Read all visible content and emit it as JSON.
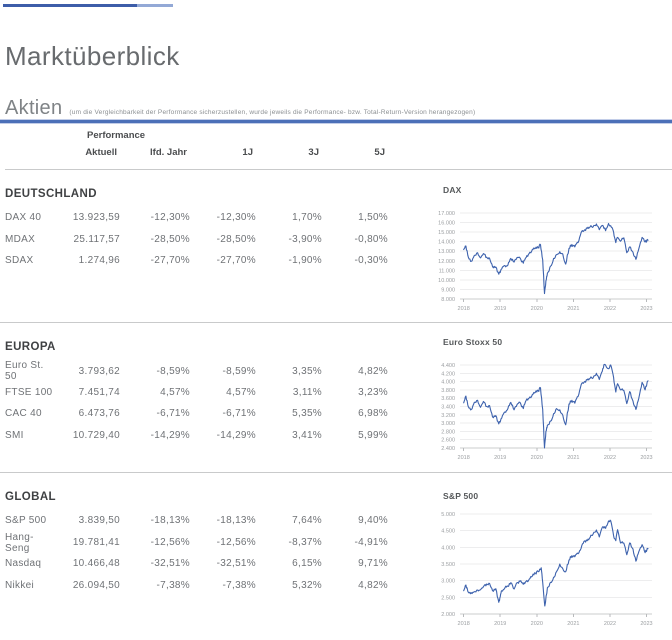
{
  "header": {
    "title": "Marktüberblick",
    "section": "Aktien",
    "section_note": "(um die Vergleichbarkeit der Performance sicherzustellen, wurde jeweils die Performance- bzw. Total-Return-Version herangezogen)"
  },
  "table": {
    "group_header": "Performance",
    "columns": [
      "Aktuell",
      "lfd. Jahr",
      "1J",
      "3J",
      "5J"
    ],
    "sections": [
      {
        "title": "DEUTSCHLAND",
        "rows": [
          {
            "label": "DAX 40",
            "values": [
              "13.923,59",
              "-12,30%",
              "-12,30%",
              "1,70%",
              "1,50%"
            ]
          },
          {
            "label": "MDAX",
            "values": [
              "25.117,57",
              "-28,50%",
              "-28,50%",
              "-3,90%",
              "-0,80%"
            ]
          },
          {
            "label": "SDAX",
            "values": [
              "1.274,96",
              "-27,70%",
              "-27,70%",
              "-1,90%",
              "-0,30%"
            ]
          }
        ]
      },
      {
        "title": "EUROPA",
        "rows": [
          {
            "label": "Euro St. 50",
            "values": [
              "3.793,62",
              "-8,59%",
              "-8,59%",
              "3,35%",
              "4,82%"
            ]
          },
          {
            "label": "FTSE 100",
            "values": [
              "7.451,74",
              "4,57%",
              "4,57%",
              "3,11%",
              "3,23%"
            ]
          },
          {
            "label": "CAC 40",
            "values": [
              "6.473,76",
              "-6,71%",
              "-6,71%",
              "5,35%",
              "6,98%"
            ]
          },
          {
            "label": "SMI",
            "values": [
              "10.729,40",
              "-14,29%",
              "-14,29%",
              "3,41%",
              "5,99%"
            ]
          }
        ]
      },
      {
        "title": "GLOBAL",
        "rows": [
          {
            "label": "S&P 500",
            "values": [
              "3.839,50",
              "-18,13%",
              "-18,13%",
              "7,64%",
              "9,40%"
            ]
          },
          {
            "label": "Hang-Seng",
            "values": [
              "19.781,41",
              "-12,56%",
              "-12,56%",
              "-8,37%",
              "-4,91%"
            ]
          },
          {
            "label": "Nasdaq",
            "values": [
              "10.466,48",
              "-32,51%",
              "-32,51%",
              "6,15%",
              "9,71%"
            ]
          },
          {
            "label": "Nikkei",
            "values": [
              "26.094,50",
              "-7,38%",
              "-7,38%",
              "5,32%",
              "4,82%"
            ]
          }
        ]
      }
    ]
  },
  "colors": {
    "accent_blue": "#4c70b8",
    "topline_dark": "#3d5da9",
    "topline_light": "#93a9d6",
    "chart_line": "#3d62ad",
    "divider_gray": "#c9cacb"
  },
  "chart_data": [
    {
      "type": "line",
      "title": "DAX",
      "ylim": [
        8000,
        17000
      ],
      "ytick_step": 1000,
      "ytick_labels": [
        "17.000",
        "16.000",
        "15.000",
        "14.000",
        "13.000",
        "12.000",
        "11.000",
        "10.000",
        "9.000",
        "8.000"
      ],
      "xlim": [
        2017.9,
        2023.15
      ],
      "xticks": [
        2018,
        2019,
        2020,
        2021,
        2022,
        2023
      ],
      "xtick_labels": [
        "2018",
        "2019",
        "2020",
        "2021",
        "2022",
        "2023"
      ],
      "grid": true,
      "x": [
        2018.0,
        2018.06,
        2018.13,
        2018.21,
        2018.29,
        2018.38,
        2018.46,
        2018.54,
        2018.63,
        2018.71,
        2018.79,
        2018.88,
        2018.96,
        2019.04,
        2019.13,
        2019.21,
        2019.29,
        2019.38,
        2019.46,
        2019.54,
        2019.63,
        2019.71,
        2019.79,
        2019.88,
        2019.96,
        2020.04,
        2020.1,
        2020.16,
        2020.21,
        2020.25,
        2020.29,
        2020.38,
        2020.46,
        2020.54,
        2020.63,
        2020.71,
        2020.79,
        2020.88,
        2020.96,
        2021.04,
        2021.13,
        2021.21,
        2021.29,
        2021.38,
        2021.46,
        2021.54,
        2021.63,
        2021.71,
        2021.79,
        2021.88,
        2021.96,
        2022.04,
        2022.1,
        2022.16,
        2022.21,
        2022.29,
        2022.38,
        2022.46,
        2022.54,
        2022.63,
        2022.71,
        2022.79,
        2022.88,
        2022.96,
        2023.04
      ],
      "values": [
        13180,
        13550,
        12350,
        11950,
        12550,
        12850,
        12300,
        12750,
        12370,
        12250,
        11400,
        11350,
        10600,
        11150,
        11480,
        11550,
        12250,
        11870,
        12350,
        12300,
        11750,
        12350,
        12750,
        13200,
        13280,
        13400,
        13680,
        12100,
        8560,
        9900,
        10700,
        11450,
        12250,
        12650,
        12950,
        12700,
        11650,
        13300,
        13700,
        13450,
        13900,
        14950,
        15150,
        15400,
        15550,
        15550,
        15850,
        15250,
        15700,
        15150,
        15900,
        15500,
        15000,
        13900,
        14450,
        14050,
        14400,
        12850,
        13450,
        12900,
        12150,
        13250,
        14450,
        13950,
        14150
      ]
    },
    {
      "type": "line",
      "title": "Euro Stoxx 50",
      "ylim": [
        2400,
        4400
      ],
      "ytick_step": 200,
      "ytick_labels": [
        "4.400",
        "4.200",
        "4.000",
        "3.800",
        "3.600",
        "3.400",
        "3.200",
        "3.000",
        "2.800",
        "2.600",
        "2.400"
      ],
      "xlim": [
        2017.9,
        2023.15
      ],
      "xticks": [
        2018,
        2019,
        2020,
        2021,
        2022,
        2023
      ],
      "xtick_labels": [
        "2018",
        "2019",
        "2020",
        "2021",
        "2022",
        "2023"
      ],
      "grid": true,
      "x": [
        2018.0,
        2018.06,
        2018.13,
        2018.21,
        2018.29,
        2018.38,
        2018.46,
        2018.54,
        2018.63,
        2018.71,
        2018.79,
        2018.88,
        2018.96,
        2019.04,
        2019.13,
        2019.21,
        2019.29,
        2019.38,
        2019.46,
        2019.54,
        2019.63,
        2019.71,
        2019.79,
        2019.88,
        2019.96,
        2020.04,
        2020.1,
        2020.16,
        2020.21,
        2020.25,
        2020.29,
        2020.38,
        2020.46,
        2020.54,
        2020.63,
        2020.71,
        2020.79,
        2020.88,
        2020.96,
        2021.04,
        2021.13,
        2021.21,
        2021.29,
        2021.38,
        2021.46,
        2021.54,
        2021.63,
        2021.71,
        2021.79,
        2021.85,
        2021.96,
        2022.02,
        2022.1,
        2022.16,
        2022.21,
        2022.29,
        2022.38,
        2022.46,
        2022.54,
        2022.63,
        2022.71,
        2022.79,
        2022.88,
        2022.96,
        2023.04
      ],
      "values": [
        3490,
        3650,
        3390,
        3330,
        3500,
        3550,
        3380,
        3520,
        3400,
        3420,
        3150,
        3180,
        2980,
        3120,
        3270,
        3350,
        3500,
        3320,
        3450,
        3500,
        3350,
        3550,
        3600,
        3690,
        3740,
        3780,
        3850,
        3330,
        2400,
        2800,
        2950,
        3050,
        3230,
        3350,
        3320,
        3190,
        2960,
        3460,
        3550,
        3480,
        3640,
        3920,
        3980,
        4040,
        4080,
        4090,
        4200,
        4050,
        4250,
        4415,
        4310,
        4400,
        4100,
        3750,
        3950,
        3800,
        3790,
        3470,
        3760,
        3530,
        3330,
        3600,
        3980,
        3800,
        4020
      ]
    },
    {
      "type": "line",
      "title": "S&P 500",
      "ylim": [
        2000,
        5000
      ],
      "ytick_step": 500,
      "ytick_labels": [
        "5.000",
        "4.500",
        "4.000",
        "3.500",
        "3.000",
        "2.500",
        "2.000"
      ],
      "xlim": [
        2017.9,
        2023.15
      ],
      "xticks": [
        2018,
        2019,
        2020,
        2021,
        2022,
        2023
      ],
      "xtick_labels": [
        "2018",
        "2019",
        "2020",
        "2021",
        "2022",
        "2023"
      ],
      "grid": true,
      "x": [
        2018.0,
        2018.06,
        2018.13,
        2018.21,
        2018.29,
        2018.38,
        2018.46,
        2018.54,
        2018.63,
        2018.71,
        2018.79,
        2018.88,
        2018.96,
        2019.0,
        2019.04,
        2019.13,
        2019.21,
        2019.29,
        2019.38,
        2019.46,
        2019.54,
        2019.63,
        2019.71,
        2019.79,
        2019.88,
        2019.96,
        2020.04,
        2020.12,
        2020.16,
        2020.22,
        2020.29,
        2020.38,
        2020.46,
        2020.54,
        2020.63,
        2020.71,
        2020.79,
        2020.88,
        2020.96,
        2021.04,
        2021.13,
        2021.21,
        2021.29,
        2021.38,
        2021.46,
        2021.54,
        2021.63,
        2021.71,
        2021.79,
        2021.88,
        2021.96,
        2022.02,
        2022.1,
        2022.16,
        2022.21,
        2022.29,
        2022.38,
        2022.46,
        2022.54,
        2022.63,
        2022.71,
        2022.79,
        2022.88,
        2022.96,
        2023.04
      ],
      "values": [
        2700,
        2870,
        2650,
        2640,
        2670,
        2720,
        2730,
        2820,
        2900,
        2915,
        2700,
        2760,
        2350,
        2510,
        2700,
        2790,
        2830,
        2940,
        2750,
        2940,
        2980,
        2890,
        2980,
        3040,
        3140,
        3230,
        3270,
        3385,
        2950,
        2240,
        2790,
        2950,
        3100,
        3270,
        3500,
        3360,
        3270,
        3620,
        3750,
        3715,
        3810,
        3970,
        4180,
        4200,
        4300,
        4400,
        4520,
        4310,
        4600,
        4570,
        4790,
        4795,
        4350,
        4200,
        4530,
        4130,
        4130,
        3780,
        4130,
        3950,
        3585,
        3870,
        4080,
        3840,
        3960
      ]
    }
  ]
}
